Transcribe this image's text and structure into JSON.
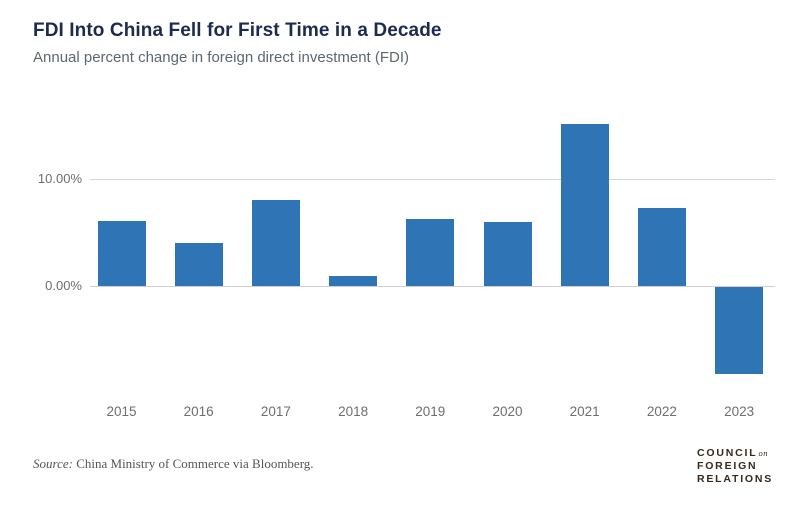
{
  "header": {
    "title": "FDI Into China Fell for First Time in a Decade",
    "subtitle": "Annual percent change in foreign direct investment (FDI)"
  },
  "chart_data": {
    "type": "bar",
    "title": "FDI Into China Fell for First Time in a Decade",
    "subtitle": "Annual percent change in foreign direct investment (FDI)",
    "categories": [
      "2015",
      "2016",
      "2017",
      "2018",
      "2019",
      "2020",
      "2021",
      "2022",
      "2023"
    ],
    "values": [
      6.1,
      4.0,
      8.0,
      0.9,
      6.3,
      6.0,
      15.1,
      7.3,
      -8.1
    ],
    "unit": "percent",
    "xlabel": "",
    "ylabel": "",
    "y_ticks": [
      {
        "label": "10.00%",
        "value": 10
      },
      {
        "label": "0.00%",
        "value": 0
      }
    ],
    "ylim": [
      -10,
      16
    ],
    "grid": true,
    "legend": false,
    "bar_color": "#2f74b5"
  },
  "footer": {
    "source_prefix": "Source:",
    "source_rest": " China Ministry of Commerce via Bloomberg.",
    "logo_lines": {
      "line1": "COUNCIL",
      "conj": "on",
      "line2": "FOREIGN",
      "line3": "RELATIONS"
    }
  },
  "colors": {
    "bar": "#2f74b5",
    "title": "#1c2b4e",
    "subtitle": "#5d6772",
    "axis_text": "#6e6e6e",
    "gridline": "#d6d6d6",
    "source_text": "#555555",
    "logo": "#37281c",
    "background": "#ffffff"
  }
}
